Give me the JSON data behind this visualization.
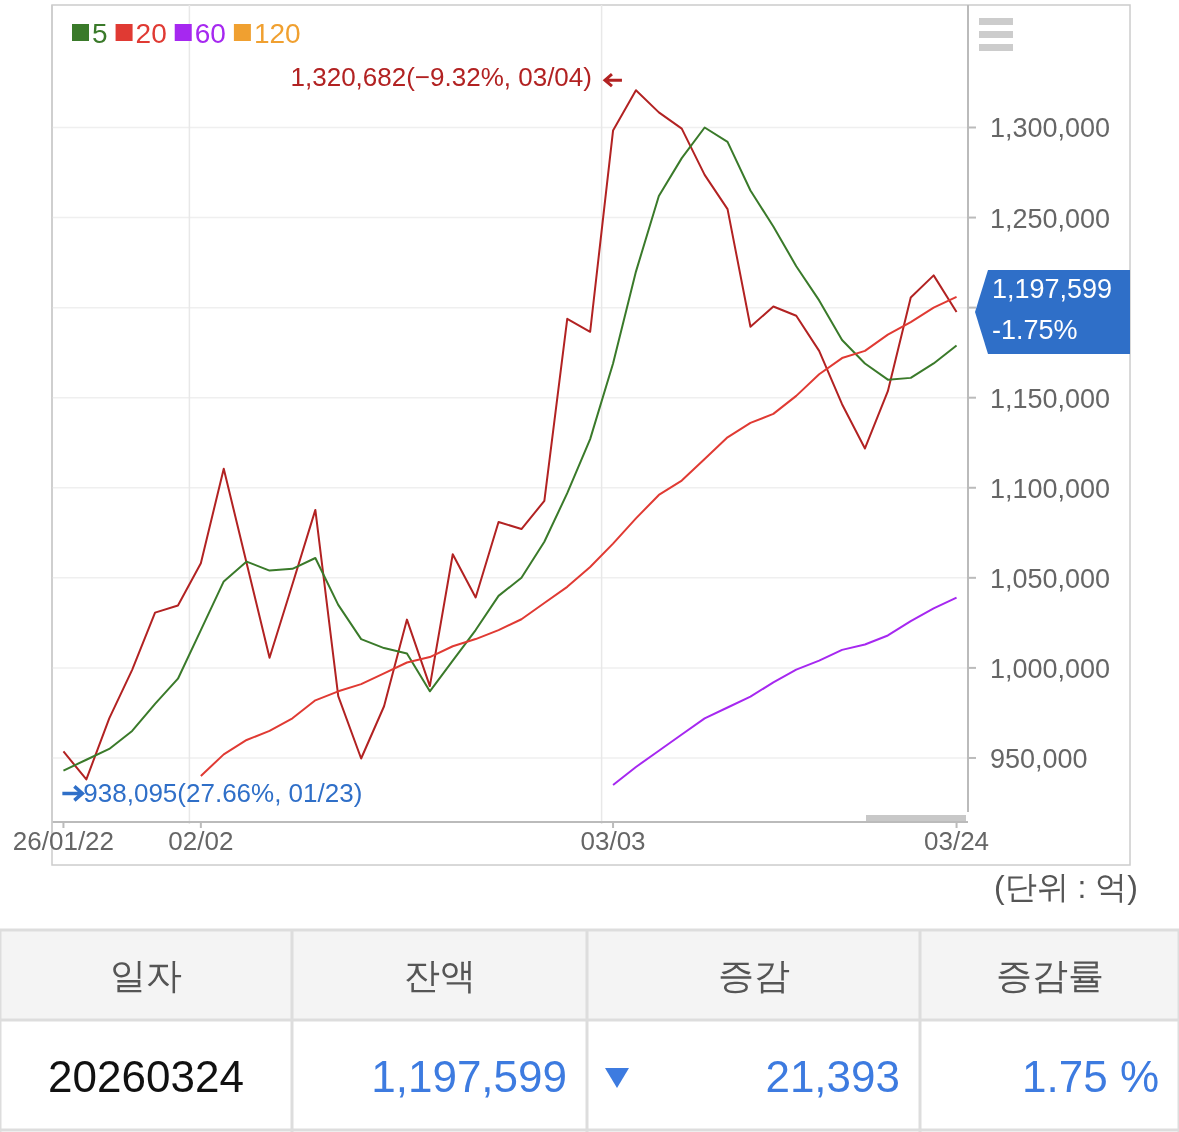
{
  "chart_data": {
    "type": "line",
    "legend": "top left",
    "grid": true,
    "categories": [
      "26/01/22",
      null,
      null,
      null,
      null,
      null,
      "02/02",
      null,
      null,
      null,
      null,
      null,
      null,
      null,
      null,
      null,
      null,
      null,
      null,
      null,
      null,
      null,
      null,
      null,
      "03/03",
      null,
      null,
      null,
      null,
      null,
      null,
      null,
      null,
      null,
      null,
      null,
      null,
      null,
      null,
      "03/24"
    ],
    "series": [
      {
        "color": "#b22222",
        "values": [
          953600,
          938095,
          972000,
          998900,
          1030700,
          1034600,
          1058100,
          1110600,
          1058100,
          1005600,
          1046400,
          1087700,
          984300,
          949700,
          978700,
          1026800,
          989900,
          1063100,
          1039100,
          1081000,
          1077100,
          1092700,
          1193800,
          1186600,
          1298300,
          1320682,
          1308400,
          1299400,
          1273700,
          1254700,
          1189400,
          1200600,
          1195500,
          1176000,
          1146400,
          1121800,
          1153600,
          1205600,
          1217900,
          1197599
        ]
      },
      {
        "name": "5",
        "color": "#3a7a2a",
        "values": [
          943000,
          949000,
          955000,
          965000,
          980000,
          994000,
          1021000,
          1048000,
          1059000,
          1054000,
          1055000,
          1061000,
          1035000,
          1016000,
          1011000,
          1008000,
          987000,
          1004000,
          1021000,
          1040000,
          1050000,
          1070000,
          1097000,
          1127000,
          1169000,
          1220000,
          1262000,
          1283000,
          1300000,
          1292000,
          1265000,
          1245000,
          1223000,
          1204000,
          1182000,
          1169000,
          1160000,
          1161000,
          1169000,
          1179000
        ]
      },
      {
        "name": "20",
        "color": "#e03a33",
        "values": [
          null,
          null,
          null,
          null,
          null,
          null,
          940000,
          952000,
          960000,
          965000,
          972000,
          982000,
          987000,
          991000,
          997000,
          1003000,
          1006000,
          1012000,
          1016000,
          1021000,
          1027000,
          1036000,
          1045000,
          1056000,
          1069000,
          1083000,
          1096000,
          1104000,
          1116000,
          1128000,
          1136000,
          1141000,
          1151000,
          1163000,
          1172000,
          1176000,
          1185000,
          1192000,
          1200000,
          1206000
        ]
      },
      {
        "name": "60",
        "color": "#a628f0",
        "values": [
          null,
          null,
          null,
          null,
          null,
          null,
          null,
          null,
          null,
          null,
          null,
          null,
          null,
          null,
          null,
          null,
          null,
          null,
          null,
          null,
          null,
          null,
          null,
          null,
          935000,
          945000,
          954000,
          963000,
          972000,
          978000,
          984000,
          992000,
          999000,
          1004000,
          1010000,
          1013000,
          1018000,
          1026000,
          1033000,
          1039000
        ]
      },
      {
        "name": "120",
        "color": "#f0a030",
        "values": [
          null,
          null,
          null,
          null,
          null,
          null,
          null,
          null,
          null,
          null,
          null,
          null,
          null,
          null,
          null,
          null,
          null,
          null,
          null,
          null,
          null,
          null,
          null,
          null,
          null,
          null,
          null,
          null,
          null,
          null,
          null,
          null,
          null,
          null,
          null,
          null,
          null,
          null,
          null,
          null
        ]
      }
    ],
    "ylim": [
      920000,
      1368000
    ],
    "yticks": [
      {
        "value": 950000,
        "label": "950,000"
      },
      {
        "value": 1000000,
        "label": "1,000,000"
      },
      {
        "value": 1050000,
        "label": "1,050,000"
      },
      {
        "value": 1100000,
        "label": "1,100,000"
      },
      {
        "value": 1150000,
        "label": "1,150,000"
      },
      {
        "value": 1200000,
        "label": null
      },
      {
        "value": 1250000,
        "label": "1,250,000"
      },
      {
        "value": 1300000,
        "label": "1,300,000"
      }
    ],
    "annotations": [
      "1,320,682(−9.32%, 03/04)",
      "938,095(27.66%, 01/23)",
      "1,197,599 -1.75%",
      "(단위 : 억)",
      "일자",
      "잔액",
      "증감",
      "증감률",
      "20260324",
      "1,197,599",
      "21,393",
      "1.75 %"
    ]
  }
}
